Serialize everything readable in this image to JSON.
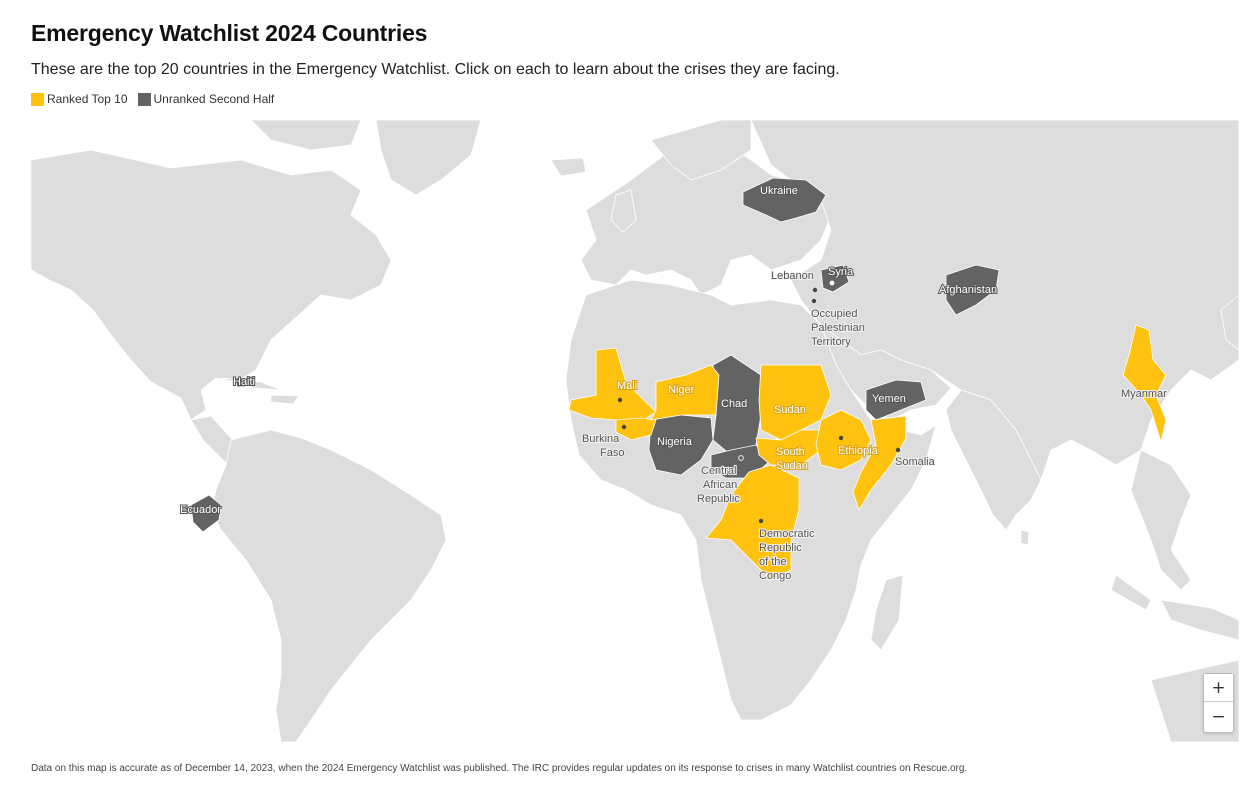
{
  "header": {
    "title": "Emergency Watchlist 2024 Countries",
    "subtitle": "These are the top 20 countries in the Emergency Watchlist. Click on each to learn about the crises they are facing."
  },
  "legend": {
    "items": [
      {
        "label": "Ranked Top 10",
        "color": "#ffc20e"
      },
      {
        "label": "Unranked Second Half",
        "color": "#636363"
      }
    ]
  },
  "colors": {
    "land": "#dddddd",
    "ocean": "#ffffff",
    "top10": "#ffc20e",
    "second_half": "#636363"
  },
  "map": {
    "labels": {
      "ukraine": "Ukraine",
      "syria": "Syria",
      "lebanon": "Lebanon",
      "opt": [
        "Occupied",
        "Palestinian",
        "Territory"
      ],
      "afghanistan": "Afghanistan",
      "yemen": "Yemen",
      "haiti": "Haiti",
      "ecuador": "Ecuador",
      "mali": "Mali",
      "niger": "Niger",
      "chad": "Chad",
      "sudan": "Sudan",
      "burkina_faso": [
        "Burkina",
        "Faso"
      ],
      "nigeria": "Nigeria",
      "south_sudan": [
        "South",
        "Sudan"
      ],
      "ethiopia": "Ethiopia",
      "somalia": "Somalia",
      "car": [
        "Central",
        "African",
        "Republic"
      ],
      "drc": [
        "Democratic",
        "Republic",
        "of the",
        "Congo"
      ],
      "myanmar": "Myanmar"
    }
  },
  "zoom": {
    "in_label": "+",
    "out_label": "−"
  },
  "footer": {
    "note": "Data on this map is accurate as of December 14, 2023, when the 2024 Emergency Watchlist was published. The IRC provides regular updates on its response to crises in many Watchlist countries on Rescue.org."
  }
}
